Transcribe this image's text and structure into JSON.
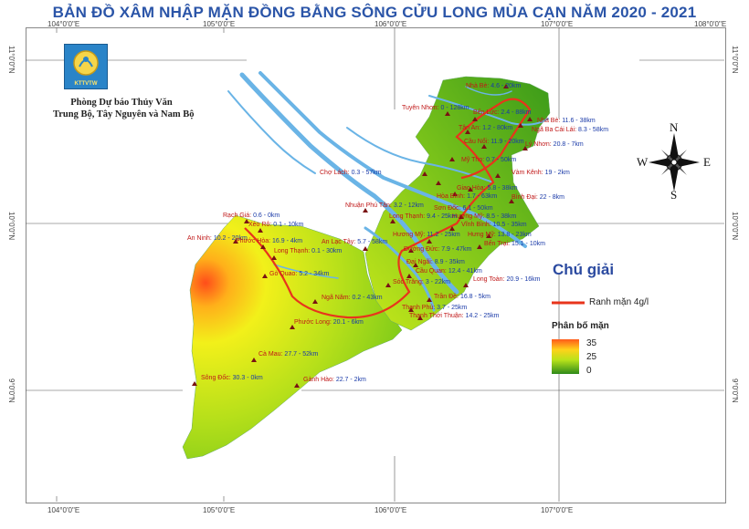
{
  "title": "BẢN ĐỒ XÂM NHẬP MẶN ĐỒNG BẰNG SÔNG CỬU LONG MÙA CẠN NĂM 2020 - 2021",
  "organization": {
    "line1": "Phòng Dự báo Thủy Văn",
    "line2": "Trung Bộ, Tây Nguyên và Nam Bộ",
    "logo_text": "KTTVTW"
  },
  "coords": {
    "top": [
      "104°0'0\"E",
      "105°0'0\"E",
      "106°0'0\"E",
      "107°0'0\"E",
      "108°0'0\"E"
    ],
    "bottom": [
      "104°0'0\"E",
      "105°0'0\"E",
      "106°0'0\"E",
      "107°0'0\"E"
    ],
    "left": [
      "11°0'0\"N",
      "10°0'0\"N",
      "9°0'0\"N"
    ],
    "right": [
      "11°0'0\"N",
      "10°0'0\"N",
      "9°0'0\"N"
    ]
  },
  "compass": {
    "n": "N",
    "s": "S",
    "e": "E",
    "w": "W"
  },
  "legend": {
    "title": "Chú giải",
    "line_label": "Ranh mặn 4g/l",
    "line_color": "#e8341c",
    "gradient_title": "Phân bố mặn",
    "gradient_values": [
      "35",
      "25",
      "0"
    ]
  },
  "stations": [
    {
      "name": "Nhà Bè:",
      "value": "4.6 - 20km"
    },
    {
      "name": "Tuyên Nhơn:",
      "value": "0 - 128km"
    },
    {
      "name": "Bến Lức:",
      "value": "2.4 - 88km"
    },
    {
      "name": "Tân An:",
      "value": "1.2 - 80km"
    },
    {
      "name": "Cầu Nổi:",
      "value": "11.9 - 20km"
    },
    {
      "name": "Mỹ Tho:",
      "value": "0.7 - 50km"
    },
    {
      "name": "Vàm Kênh:",
      "value": "19 - 2km"
    },
    {
      "name": "Bình Đại:",
      "value": "22 - 8km"
    },
    {
      "name": "Lý Nhơn:",
      "value": "20.8 - 7km"
    },
    {
      "name": "Ngã Ba Cái Lái:",
      "value": "8.3 - 58km"
    },
    {
      "name": "Nhà Bè:",
      "value": "11.6 - 38km"
    },
    {
      "name": "Chợ Lách:",
      "value": "0.3 - 57km"
    },
    {
      "name": "Hòa Bình:",
      "value": "1.7 - 63km"
    },
    {
      "name": "Giao Hòa:",
      "value": "5.8 - 38km"
    },
    {
      "name": "Sơn Đốc:",
      "value": "6.1 - 50km"
    },
    {
      "name": "Hương Mỹ:",
      "value": "8.5 - 38km"
    },
    {
      "name": "Vĩnh Bình:",
      "value": "10.5 - 35km"
    },
    {
      "name": "Rạch Giá:",
      "value": "0.6 - 0km"
    },
    {
      "name": "Xẻo Rô:",
      "value": "0.1 - 10km"
    },
    {
      "name": "An Ninh:",
      "value": "10.2 - 20km"
    },
    {
      "name": "Phước Hòa:",
      "value": "16.9 - 4km"
    },
    {
      "name": "Long Thạnh:",
      "value": "0.1 - 30km"
    },
    {
      "name": "Nhuận Phú Tân:",
      "value": "3.2 - 12km"
    },
    {
      "name": "Long Thạnh:",
      "value": "9.4 - 25km"
    },
    {
      "name": "An Lạc Tây:",
      "value": "5.7 - 58km"
    },
    {
      "name": "Hưng Mỹ:",
      "value": "13.8 - 23km"
    },
    {
      "name": "Hương Mỹ:",
      "value": "11.2 - 25km"
    },
    {
      "name": "Bến Trại:",
      "value": "15.1 - 10km"
    },
    {
      "name": "Đường Đức:",
      "value": "7.9 - 47km"
    },
    {
      "name": "Đại Ngãi:",
      "value": "8.9 - 35km"
    },
    {
      "name": "Cầu Quan:",
      "value": "12.4 - 41km"
    },
    {
      "name": "Gò Quao:",
      "value": "5.2 - 34km"
    },
    {
      "name": "Sóc Trăng:",
      "value": "3 - 22km"
    },
    {
      "name": "Long Toàn:",
      "value": "20.9 - 16km"
    },
    {
      "name": "Ngã Năm:",
      "value": "0.2 - 43km"
    },
    {
      "name": "Trần Đề:",
      "value": "16.8 - 5km"
    },
    {
      "name": "Thạnh Phú:",
      "value": "3.7 - 25km"
    },
    {
      "name": "Phước Long:",
      "value": "20.1 - 6km"
    },
    {
      "name": "Thạnh Thới Thuận:",
      "value": "14.2 - 25km"
    },
    {
      "name": "Cà Mau:",
      "value": "27.7 - 52km"
    },
    {
      "name": "Sông Đốc:",
      "value": "30.3 - 0km"
    },
    {
      "name": "Gành Hào:",
      "value": "22.7 - 2km"
    }
  ]
}
